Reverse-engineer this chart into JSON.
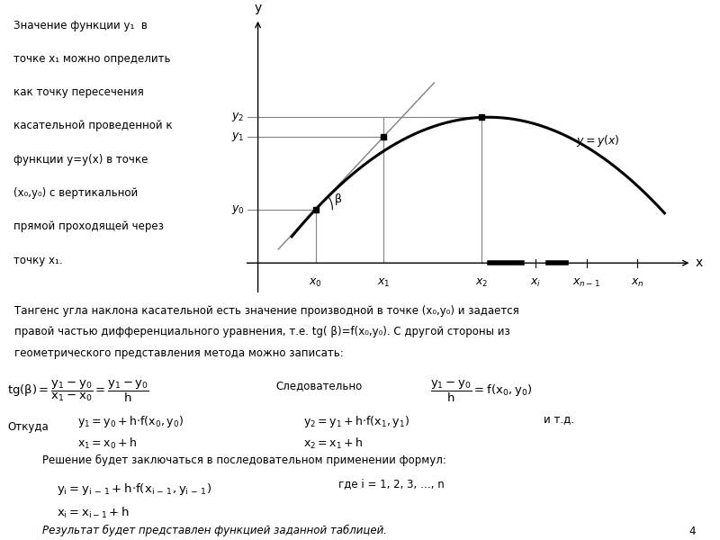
{
  "bg_color": "#ffffff",
  "left_text_lines": [
    "Значение функции y₁  в",
    "точке x₁ можно определить",
    "как точку пересечения",
    "касательной проведенной к",
    "функции y=y(x) в точке",
    "(x₀,y₀) с вертикальной",
    "прямой проходящей через",
    "точку x₁."
  ],
  "bottom_lines": [
    "Тангенс угла наклона касательной есть значение производной в точке (x₀,y₀) и задается",
    "правой частью дифференциального уравнения, т.е. tg( β)=f(x₀,y₀). С другой стороны из",
    "геометрического представления метода можно записать:"
  ],
  "page_number": "4",
  "conclusion": "Результат будет представлен функцией заданной таблицей."
}
